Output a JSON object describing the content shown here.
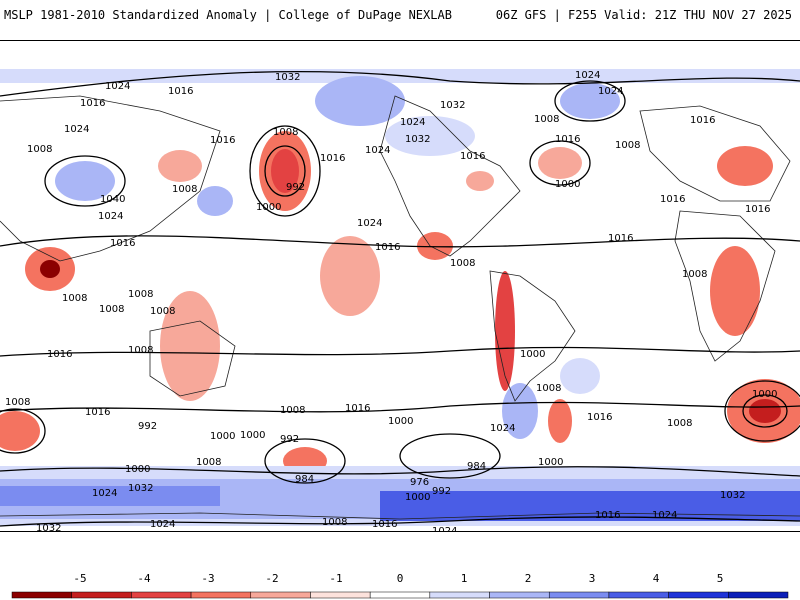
{
  "header": {
    "title_left": "MSLP 1981-2010 Standardized Anomaly | College of DuPage NEXLAB",
    "title_right": "06Z GFS | F255 Valid: 21Z THU NOV 27 2025"
  },
  "contour_labels": [
    "1024",
    "1032",
    "1024",
    "1016",
    "1024",
    "1032",
    "1016",
    "1008",
    "1016",
    "1024",
    "1016",
    "1032",
    "1024",
    "1016",
    "1040",
    "1024",
    "1008",
    "1008",
    "992",
    "1000",
    "1024",
    "1016",
    "1024",
    "1008",
    "1016",
    "1008",
    "1016",
    "1000",
    "1016",
    "1008",
    "1008",
    "1008",
    "1016",
    "1008",
    "1008",
    "1008",
    "1000",
    "1016",
    "1008",
    "1016",
    "1016",
    "1008",
    "1016",
    "1000",
    "992",
    "1000",
    "984",
    "984",
    "976",
    "1000",
    "992",
    "1024",
    "1000",
    "1008",
    "1016",
    "1008",
    "1000",
    "992",
    "1000",
    "1016",
    "1008",
    "1000",
    "1024",
    "1008",
    "1032",
    "1032",
    "1024",
    "1008",
    "1016",
    "1024",
    "1016",
    "1024",
    "1032"
  ],
  "colorbar": {
    "ticks": [
      "-5",
      "-4",
      "-3",
      "-2",
      "-1",
      "0",
      "1",
      "2",
      "3",
      "4",
      "5"
    ],
    "colors": [
      "#8b0000",
      "#c41e1e",
      "#e34242",
      "#f47360",
      "#f7a89a",
      "#fde2dc",
      "#ffffff",
      "#d6dcfb",
      "#aab6f6",
      "#7b8cf0",
      "#4a5de6",
      "#1f33d8",
      "#0c1fb8"
    ]
  }
}
